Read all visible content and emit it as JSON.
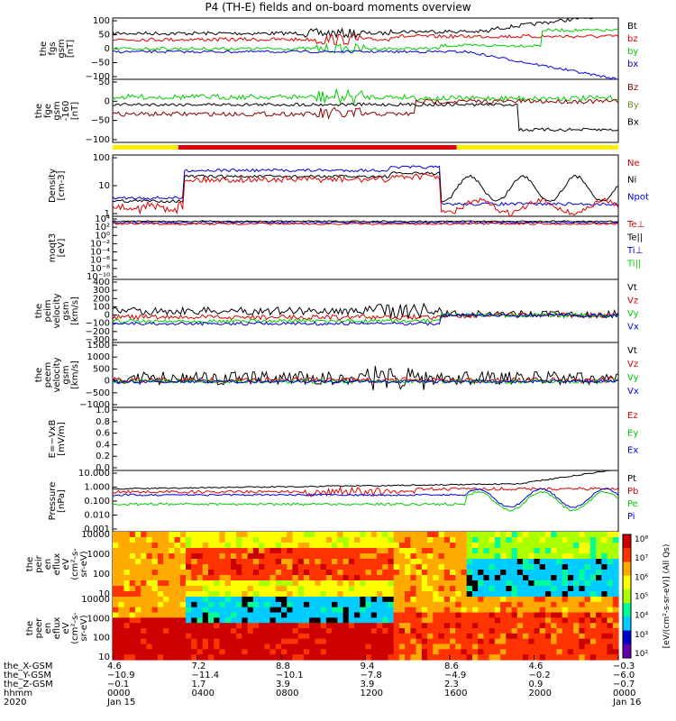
{
  "title": "P4 (TH-E) fields and on-board moments overview",
  "chart_data": [
    {
      "type": "line",
      "ylabel": [
        "the",
        "fgs",
        "gsm",
        "[nT]"
      ],
      "yticks": [
        "100",
        "50",
        "0",
        "−50",
        "−100"
      ],
      "ylim": [
        -100,
        100
      ],
      "legend": [
        {
          "label": "Bt",
          "color": "#000000"
        },
        {
          "label": "bz",
          "color": "#dd0000"
        },
        {
          "label": "by",
          "color": "#00cc00"
        },
        {
          "label": "bx",
          "color": "#0000dd"
        }
      ]
    },
    {
      "type": "line",
      "ylabel": [
        "the",
        "fge",
        "gsm",
        "-160",
        "[nT]"
      ],
      "yticks": [
        "50",
        "0",
        "−50",
        "−100"
      ],
      "ylim": [
        -120,
        70
      ],
      "legend": [
        {
          "label": "Bz",
          "color": "#8b0000"
        },
        {
          "label": "By",
          "color": "#6b8e23"
        },
        {
          "label": "Bx",
          "color": "#000000"
        }
      ]
    },
    {
      "type": "line",
      "ylabel": [
        "Density",
        "[cm-3]"
      ],
      "yticks": [
        "100",
        "10",
        "1"
      ],
      "yscale": "log",
      "legend": [
        {
          "label": "Ne",
          "color": "#dd0000"
        },
        {
          "label": "Ni",
          "color": "#000000"
        },
        {
          "label": "Npot",
          "color": "#0000dd"
        }
      ]
    },
    {
      "type": "line",
      "ylabel": [
        "moqt3",
        "[eV]"
      ],
      "yticks": [
        "10⁴",
        "10²",
        "10⁰",
        "10⁻²",
        "10⁻⁴",
        "10⁻⁶",
        "10⁻⁸",
        "10⁻¹⁰"
      ],
      "yscale": "log",
      "legend": [
        {
          "label": "Te⊥",
          "color": "#dd0000"
        },
        {
          "label": "Te||",
          "color": "#000000"
        },
        {
          "label": "Ti⊥",
          "color": "#0000dd"
        },
        {
          "label": "Ti||",
          "color": "#00cc00"
        }
      ]
    },
    {
      "type": "line",
      "ylabel": [
        "the",
        "peim",
        "velocity",
        "gsm",
        "[km/s]"
      ],
      "yticks": [
        "400",
        "300",
        "200",
        "100",
        "0",
        "−100",
        "−200",
        "−300"
      ],
      "ylim": [
        -300,
        400
      ],
      "legend": [
        {
          "label": "Vt",
          "color": "#000000"
        },
        {
          "label": "Vz",
          "color": "#dd0000"
        },
        {
          "label": "Vy",
          "color": "#00cc00"
        },
        {
          "label": "Vx",
          "color": "#0000dd"
        }
      ]
    },
    {
      "type": "line",
      "ylabel": [
        "the",
        "peem",
        "velocity",
        "gsm",
        "[km/s]"
      ],
      "yticks": [
        "1500",
        "1000",
        "500",
        "0",
        "−500",
        "−1000"
      ],
      "ylim": [
        -1000,
        1500
      ],
      "legend": [
        {
          "label": "Vt",
          "color": "#000000"
        },
        {
          "label": "Vz",
          "color": "#dd0000"
        },
        {
          "label": "Vy",
          "color": "#00cc00"
        },
        {
          "label": "Vx",
          "color": "#0000dd"
        }
      ]
    },
    {
      "type": "line",
      "ylabel": [
        "E=−VxB",
        "[mV/m]"
      ],
      "yticks": [
        "1.0",
        "0.8",
        "0.6",
        "0.4",
        "0.2",
        "0.0"
      ],
      "ylim": [
        0,
        1
      ],
      "legend": [
        {
          "label": "Ez",
          "color": "#dd0000"
        },
        {
          "label": "Ey",
          "color": "#00cc00"
        },
        {
          "label": "Ex",
          "color": "#0000dd"
        }
      ]
    },
    {
      "type": "line",
      "ylabel": [
        "Pressure",
        "[nPa]"
      ],
      "yticks": [
        "10.000",
        "1.000",
        "0.100",
        "0.010",
        "0.001"
      ],
      "yscale": "log",
      "legend": [
        {
          "label": "Pt",
          "color": "#000000"
        },
        {
          "label": "Pb",
          "color": "#dd0000"
        },
        {
          "label": "Pe",
          "color": "#00cc00"
        },
        {
          "label": "Pi",
          "color": "#0000dd"
        }
      ]
    },
    {
      "type": "heatmap",
      "ylabel": [
        "the",
        "peir",
        "en",
        "eflux",
        "eV",
        "(cm²-s-",
        "sr-eV)"
      ],
      "yticks": [
        "10000",
        "1000",
        "100",
        "10"
      ],
      "yscale": "log"
    },
    {
      "type": "heatmap",
      "ylabel": [
        "the",
        "peer",
        "en",
        "eflux",
        "eV",
        "(cm²-s-",
        "sr-eV)"
      ],
      "yticks": [
        "10000",
        "1000",
        "100",
        "10"
      ],
      "yscale": "log"
    }
  ],
  "colorbar": {
    "ticks": [
      "10⁸",
      "10⁷",
      "10⁶",
      "10⁵",
      "10⁴",
      "10³",
      "10²"
    ],
    "label": "[eV/(cm²-s-sr-eV)] (All Qs)"
  },
  "xaxis": {
    "row_labels": [
      "the_X-GSM",
      "the_Y-GSM",
      "the_Z-GSM",
      "hhmm",
      "2020"
    ],
    "ticks": [
      {
        "x": "4.6",
        "y": "−10.9",
        "z": "−0.1",
        "hhmm": "0000",
        "date": "Jan 15"
      },
      {
        "x": "7.2",
        "y": "−11.4",
        "z": "1.7",
        "hhmm": "0400",
        "date": ""
      },
      {
        "x": "8.8",
        "y": "−10.1",
        "z": "3.9",
        "hhmm": "0800",
        "date": ""
      },
      {
        "x": "9.4",
        "y": "−7.8",
        "z": "3.9",
        "hhmm": "1200",
        "date": ""
      },
      {
        "x": "8.6",
        "y": "−4.9",
        "z": "2.3",
        "hhmm": "1600",
        "date": ""
      },
      {
        "x": "4.6",
        "y": "−0.2",
        "z": "0.9",
        "hhmm": "2000",
        "date": ""
      },
      {
        "x": "−0.3",
        "y": "−6.0",
        "z": "−0.7",
        "hhmm": "0000",
        "date": "Jan 16"
      }
    ]
  }
}
